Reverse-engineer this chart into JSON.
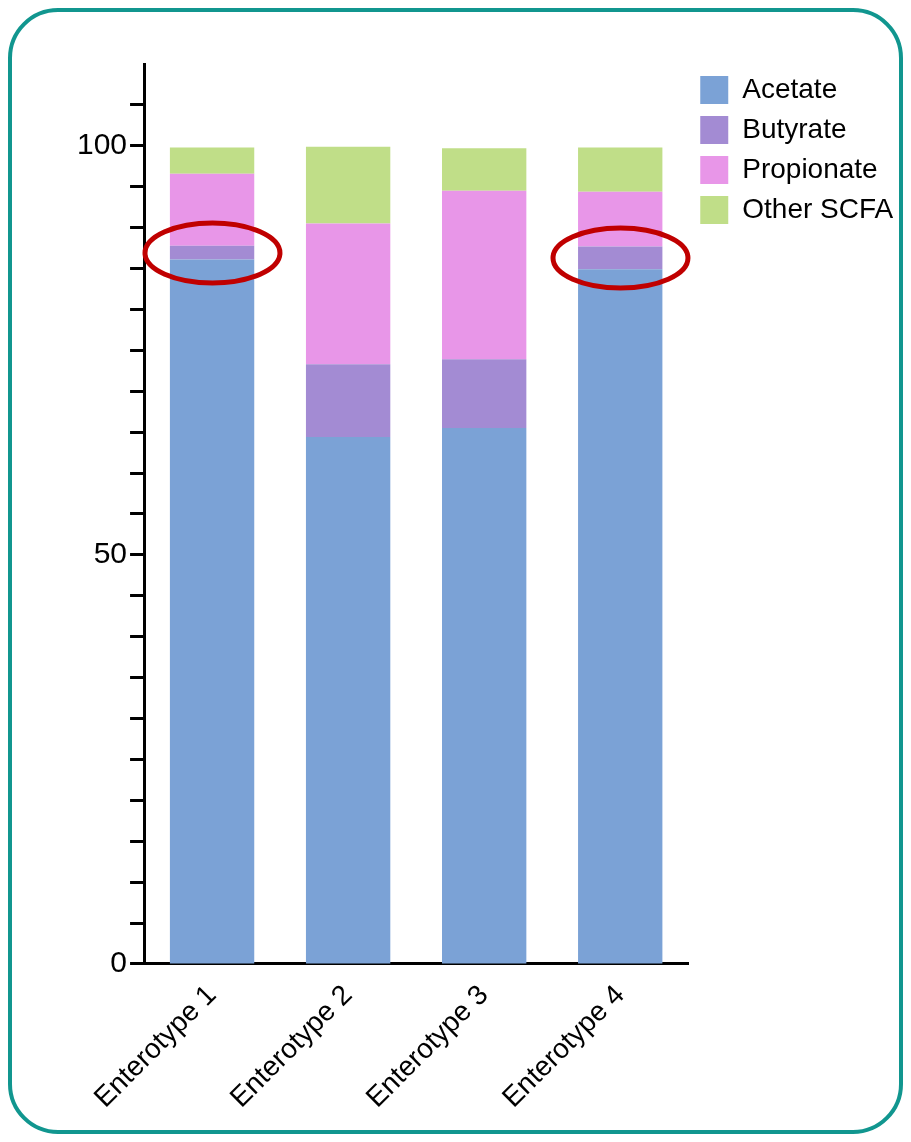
{
  "chart_data": {
    "type": "bar",
    "stacked": true,
    "categories": [
      "Enterotype 1",
      "Enterotype 2",
      "Enterotype 3",
      "Enterotype 4"
    ],
    "series": [
      {
        "name": "Acetate",
        "color": "#7ba2d6",
        "values": [
          86.1,
          64.4,
          65.5,
          84.9
        ]
      },
      {
        "name": "Butyrate",
        "color": "#a38bd3",
        "values": [
          1.7,
          8.9,
          8.4,
          2.8
        ]
      },
      {
        "name": "Propionate",
        "color": "#e896e8",
        "values": [
          8.8,
          17.2,
          20.6,
          6.7
        ]
      },
      {
        "name": "Other SCFA",
        "color": "#c0de88",
        "values": [
          3.2,
          9.4,
          5.2,
          5.4
        ]
      }
    ],
    "ylim": [
      0,
      110
    ],
    "yticks": [
      0,
      {
        "value": 5,
        "label": null
      },
      {
        "value": 10,
        "label": null
      },
      {
        "value": 15,
        "label": null
      },
      {
        "value": 20,
        "label": null
      },
      {
        "value": 25,
        "label": null
      },
      {
        "value": 30,
        "label": null
      },
      {
        "value": 35,
        "label": null
      },
      {
        "value": 40,
        "label": null
      },
      {
        "value": 45,
        "label": null
      },
      50,
      {
        "value": 55,
        "label": null
      },
      {
        "value": 60,
        "label": null
      },
      {
        "value": 65,
        "label": null
      },
      {
        "value": 70,
        "label": null
      },
      {
        "value": 75,
        "label": null
      },
      {
        "value": 80,
        "label": null
      },
      {
        "value": 85,
        "label": null
      },
      {
        "value": 90,
        "label": null
      },
      {
        "value": 95,
        "label": null
      },
      100,
      {
        "value": 105,
        "label": null
      }
    ],
    "grid": false,
    "legend": "top right"
  }
}
